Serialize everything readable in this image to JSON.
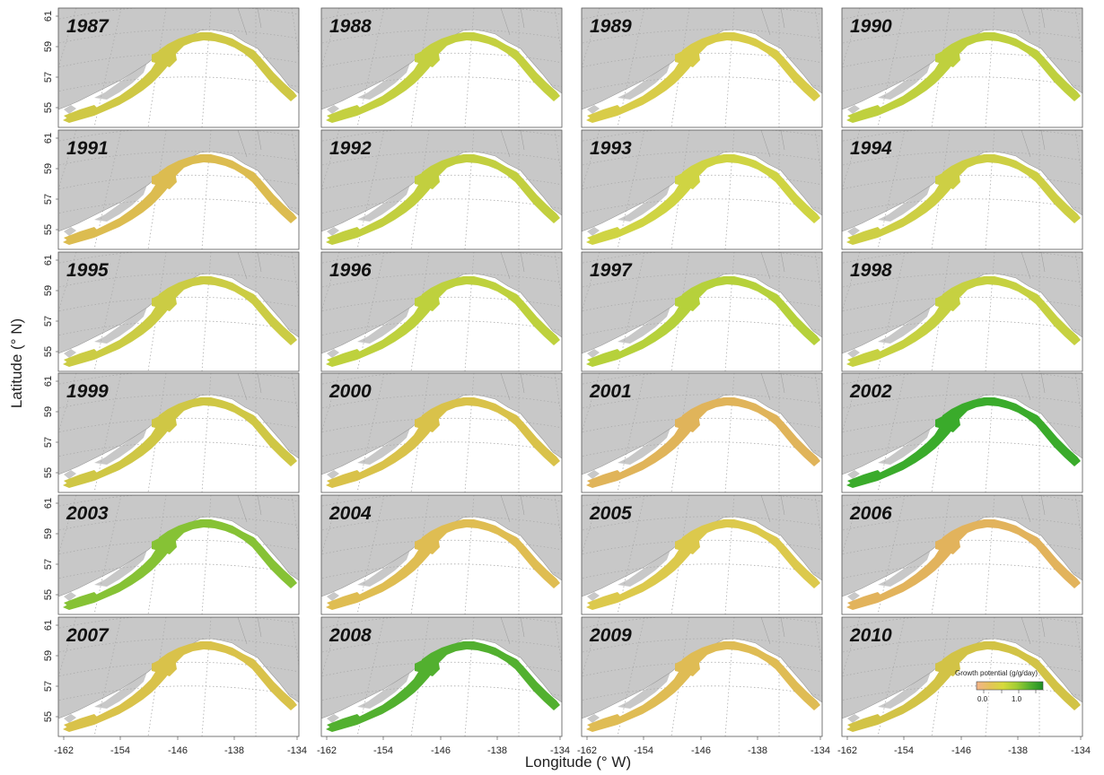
{
  "figure": {
    "ylabel": "Latitude (° N)",
    "xlabel": "Longitude (° W)",
    "lat_ticks": [
      "55",
      "57",
      "59",
      "61"
    ],
    "lon_ticks": [
      "-162",
      "-154",
      "-146",
      "-138",
      "-134"
    ]
  },
  "chart_data": {
    "type": "heatmap",
    "panels": [
      {
        "year": "1987",
        "color": "#cfc845"
      },
      {
        "year": "1988",
        "color": "#c4d040"
      },
      {
        "year": "1989",
        "color": "#d8cc48"
      },
      {
        "year": "1990",
        "color": "#bfd03e"
      },
      {
        "year": "1991",
        "color": "#dcbc50"
      },
      {
        "year": "1992",
        "color": "#c2cf3f"
      },
      {
        "year": "1993",
        "color": "#cfd443"
      },
      {
        "year": "1994",
        "color": "#cdcf44"
      },
      {
        "year": "1995",
        "color": "#cbcc44"
      },
      {
        "year": "1996",
        "color": "#bed13d"
      },
      {
        "year": "1997",
        "color": "#b6d13b"
      },
      {
        "year": "1998",
        "color": "#c6d141"
      },
      {
        "year": "1999",
        "color": "#cfc745"
      },
      {
        "year": "2000",
        "color": "#d9c24a"
      },
      {
        "year": "2001",
        "color": "#e0b45a"
      },
      {
        "year": "2002",
        "color": "#3aab2b"
      },
      {
        "year": "2003",
        "color": "#86c235"
      },
      {
        "year": "2004",
        "color": "#dfbd52"
      },
      {
        "year": "2005",
        "color": "#dcc94c"
      },
      {
        "year": "2006",
        "color": "#e2b35c"
      },
      {
        "year": "2007",
        "color": "#d9c24a"
      },
      {
        "year": "2008",
        "color": "#52b02f"
      },
      {
        "year": "2009",
        "color": "#dfbc54"
      },
      {
        "year": "2010",
        "color": "#d2c346"
      }
    ],
    "legend": {
      "title": "Growth potential (g/g/day)",
      "tick_labels": [
        "0.0",
        "1.0"
      ],
      "colors": [
        "#f3b48a",
        "#e5c35a",
        "#d6da3c",
        "#a2cd34",
        "#55b12f",
        "#1e8f24"
      ]
    }
  }
}
